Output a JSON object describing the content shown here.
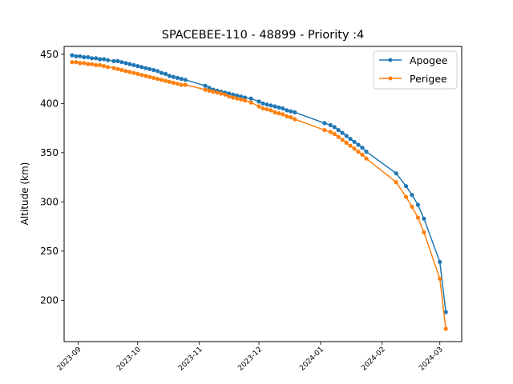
{
  "chart_data": {
    "type": "line",
    "title": "SPACEBEE-110 - 48899 - Priority :4",
    "xlabel": "",
    "ylabel": "Altitude (km)",
    "x_tick_labels": [
      "2023-09",
      "2023-10",
      "2023-11",
      "2023-12",
      "2024-01",
      "2024-02",
      "2024-03"
    ],
    "y_ticks": [
      200,
      250,
      300,
      350,
      400,
      450
    ],
    "xlim": [
      "2023-08-25",
      "2024-03-12"
    ],
    "ylim": [
      158,
      458
    ],
    "grid": false,
    "legend_position": "top-right",
    "series": [
      {
        "name": "Apogee",
        "color": "#1f77b4",
        "marker": "circle",
        "x": [
          "2023-08-29",
          "2023-08-31",
          "2023-09-02",
          "2023-09-04",
          "2023-09-06",
          "2023-09-08",
          "2023-09-10",
          "2023-09-12",
          "2023-09-14",
          "2023-09-16",
          "2023-09-19",
          "2023-09-21",
          "2023-09-23",
          "2023-09-25",
          "2023-09-27",
          "2023-09-29",
          "2023-10-01",
          "2023-10-03",
          "2023-10-05",
          "2023-10-07",
          "2023-10-09",
          "2023-10-11",
          "2023-10-13",
          "2023-10-15",
          "2023-10-17",
          "2023-10-19",
          "2023-10-21",
          "2023-10-23",
          "2023-10-25",
          "2023-11-04",
          "2023-11-06",
          "2023-11-08",
          "2023-11-10",
          "2023-11-12",
          "2023-11-14",
          "2023-11-16",
          "2023-11-18",
          "2023-11-20",
          "2023-11-22",
          "2023-11-24",
          "2023-11-27",
          "2023-12-01",
          "2023-12-03",
          "2023-12-05",
          "2023-12-07",
          "2023-12-09",
          "2023-12-11",
          "2023-12-13",
          "2023-12-15",
          "2023-12-17",
          "2023-12-19",
          "2024-01-03",
          "2024-01-06",
          "2024-01-08",
          "2024-01-10",
          "2024-01-12",
          "2024-01-14",
          "2024-01-16",
          "2024-01-18",
          "2024-01-20",
          "2024-01-22",
          "2024-01-24",
          "2024-02-08",
          "2024-02-13",
          "2024-02-16",
          "2024-02-19",
          "2024-02-22",
          "2024-03-01",
          "2024-03-04"
        ],
        "values": [
          449,
          448,
          448,
          447,
          447,
          446,
          446,
          445,
          445,
          444,
          443,
          443,
          442,
          441,
          440,
          439,
          438,
          437,
          436,
          435,
          434,
          433,
          431,
          430,
          428,
          427,
          426,
          425,
          424,
          418,
          416,
          414,
          413,
          412,
          411,
          410,
          409,
          408,
          407,
          406,
          405,
          402,
          400,
          399,
          398,
          397,
          396,
          395,
          393,
          392,
          391,
          380,
          378,
          376,
          373,
          370,
          367,
          364,
          361,
          358,
          355,
          351,
          329,
          316,
          307,
          297,
          283,
          239,
          188
        ]
      },
      {
        "name": "Perigee",
        "color": "#ff7f0e",
        "marker": "circle",
        "x": [
          "2023-08-29",
          "2023-08-31",
          "2023-09-02",
          "2023-09-04",
          "2023-09-06",
          "2023-09-08",
          "2023-09-10",
          "2023-09-12",
          "2023-09-14",
          "2023-09-16",
          "2023-09-19",
          "2023-09-21",
          "2023-09-23",
          "2023-09-25",
          "2023-09-27",
          "2023-09-29",
          "2023-10-01",
          "2023-10-03",
          "2023-10-05",
          "2023-10-07",
          "2023-10-09",
          "2023-10-11",
          "2023-10-13",
          "2023-10-15",
          "2023-10-17",
          "2023-10-19",
          "2023-10-21",
          "2023-10-23",
          "2023-10-25",
          "2023-11-04",
          "2023-11-06",
          "2023-11-08",
          "2023-11-10",
          "2023-11-12",
          "2023-11-14",
          "2023-11-16",
          "2023-11-18",
          "2023-11-20",
          "2023-11-22",
          "2023-11-24",
          "2023-11-27",
          "2023-12-01",
          "2023-12-03",
          "2023-12-05",
          "2023-12-07",
          "2023-12-09",
          "2023-12-11",
          "2023-12-13",
          "2023-12-15",
          "2023-12-17",
          "2023-12-19",
          "2024-01-03",
          "2024-01-06",
          "2024-01-08",
          "2024-01-10",
          "2024-01-12",
          "2024-01-14",
          "2024-01-16",
          "2024-01-18",
          "2024-01-20",
          "2024-01-22",
          "2024-01-24",
          "2024-02-08",
          "2024-02-13",
          "2024-02-16",
          "2024-02-19",
          "2024-02-22",
          "2024-03-01",
          "2024-03-04"
        ],
        "values": [
          442,
          442,
          441,
          441,
          440,
          440,
          439,
          439,
          438,
          437,
          436,
          435,
          434,
          433,
          432,
          431,
          430,
          429,
          428,
          427,
          426,
          425,
          424,
          423,
          422,
          421,
          420,
          419,
          419,
          414,
          413,
          412,
          411,
          410,
          409,
          407,
          406,
          405,
          404,
          403,
          401,
          397,
          395,
          394,
          393,
          391,
          390,
          389,
          387,
          386,
          384,
          373,
          371,
          369,
          366,
          363,
          360,
          357,
          354,
          351,
          348,
          344,
          320,
          305,
          295,
          284,
          269,
          222,
          171
        ]
      }
    ]
  }
}
